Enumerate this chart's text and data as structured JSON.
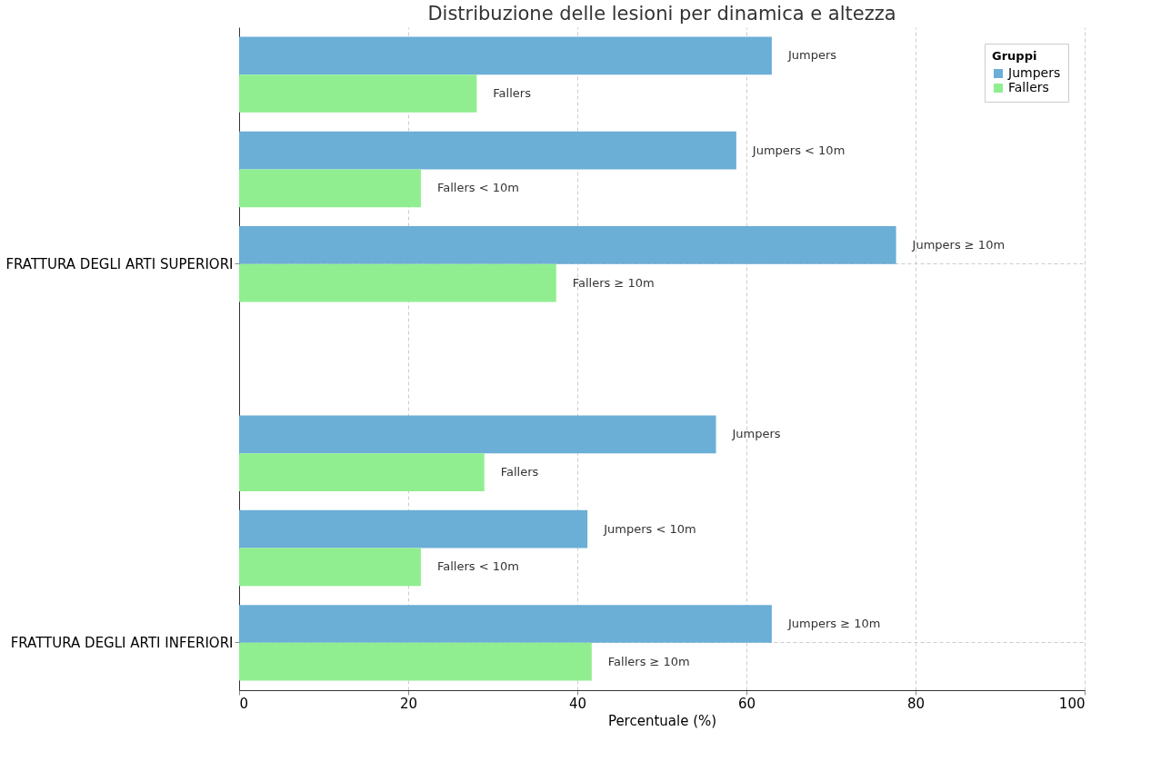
{
  "chart_data": {
    "type": "bar",
    "orientation": "horizontal",
    "title": "Distribuzione delle lesioni per dinamica e altezza",
    "xlabel": "Percentuale (%)",
    "legend_title": "Gruppi",
    "legend": "top right",
    "grid": true,
    "categories": [
      null,
      null,
      "FRATTURA DEGLI ARTI SUPERIORI",
      null,
      null,
      null,
      "FRATTURA DEGLI ARTI INFERIORI"
    ],
    "series": [
      {
        "name": "Jumpers",
        "color": "#6baed6",
        "values": [
          63.0,
          58.8,
          77.7,
          null,
          56.4,
          41.2,
          63.0
        ],
        "value_labels": [
          "Jumpers",
          "Jumpers < 10m",
          "Jumpers ≥ 10m",
          null,
          "Jumpers",
          "Jumpers < 10m",
          "Jumpers ≥ 10m"
        ]
      },
      {
        "name": "Fallers",
        "color": "#90ee90",
        "values": [
          28.1,
          21.5,
          37.5,
          null,
          29.0,
          21.5,
          41.7
        ],
        "value_labels": [
          "Fallers",
          "Fallers < 10m",
          "Fallers ≥ 10m",
          null,
          "Fallers",
          "Fallers < 10m",
          "Fallers ≥ 10m"
        ]
      }
    ],
    "xlim": [
      0,
      100
    ],
    "xticks": [
      0,
      20,
      40,
      60,
      80,
      100
    ]
  }
}
